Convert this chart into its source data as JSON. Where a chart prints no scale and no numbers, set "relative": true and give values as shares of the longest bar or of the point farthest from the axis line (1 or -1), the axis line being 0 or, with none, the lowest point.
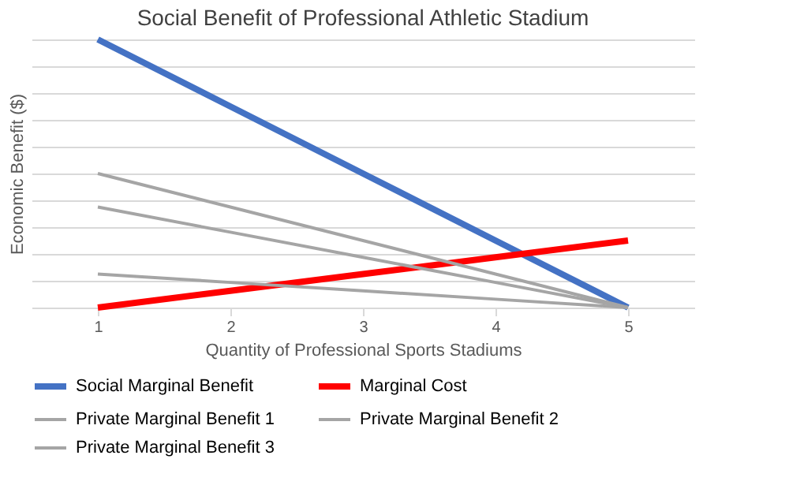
{
  "chart_data": {
    "type": "line",
    "title": "Social Benefit of Professional Athletic Stadium",
    "xlabel": "Quantity of Professional Sports Stadiums",
    "ylabel": "Economic Benefit ($)",
    "categories": [
      "1",
      "2",
      "3",
      "4",
      "5"
    ],
    "relative": true,
    "grid": "y",
    "legend": "bottom",
    "marker": "none",
    "line_style": "solid",
    "series": [
      {
        "name": "Social Marginal Benefit",
        "color": "#4472c4",
        "values": [
          1,
          0.75,
          0.5,
          0.25,
          0
        ]
      },
      {
        "name": "Marginal Cost",
        "color": "#ff0000",
        "values": [
          0,
          0.0625,
          0.125,
          0.1875,
          0.25
        ]
      },
      {
        "name": "Private Marginal Benefit 1",
        "color": "#a5a5a5",
        "values": [
          0.5,
          0.375,
          0.25,
          0.125,
          0
        ]
      },
      {
        "name": "Private Marginal Benefit 2",
        "color": "#a5a5a5",
        "values": [
          0.375,
          0.28125,
          0.1875,
          0.09375,
          0
        ]
      },
      {
        "name": "Private Marginal Benefit 3",
        "color": "#a5a5a5",
        "values": [
          0.125,
          0.09375,
          0.0625,
          0.03125,
          0
        ]
      }
    ]
  }
}
